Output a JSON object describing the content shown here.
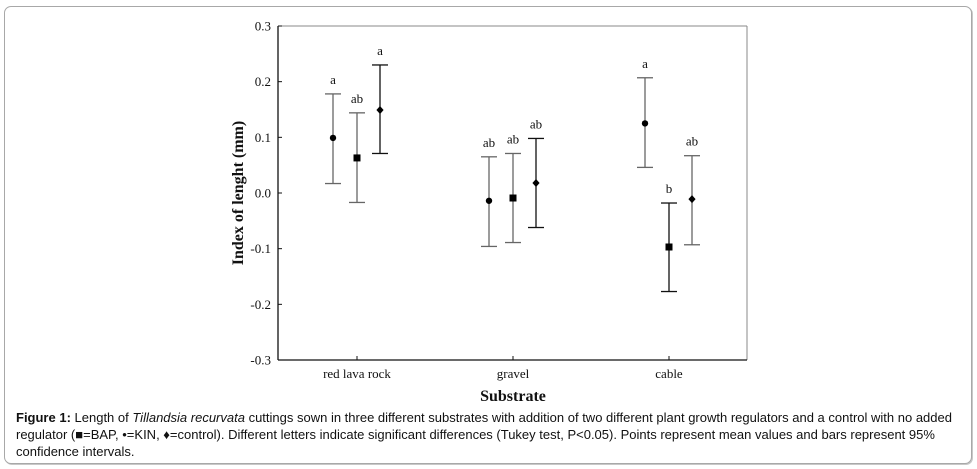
{
  "chart_data": {
    "type": "scatter",
    "subtype": "point-with-error-bars",
    "title": "",
    "xlabel": "Substrate",
    "ylabel": "Index of lenght (mm)",
    "ylim": [
      -0.3,
      0.3
    ],
    "yticks": [
      0.3,
      0.2,
      0.1,
      0.0,
      -0.1,
      -0.2,
      -0.3
    ],
    "ytick_labels": [
      "0.3",
      "0.2",
      "0.1",
      "0.0",
      "-0.1",
      "-0.2",
      "-0.3"
    ],
    "categories": [
      "red lava rock",
      "gravel",
      "cable"
    ],
    "grid": false,
    "legend": "none (described in caption)",
    "series": [
      {
        "name": "BAP",
        "marker": "square",
        "values": [
          0.063,
          -0.009,
          -0.097
        ],
        "ci_low": [
          -0.017,
          -0.089,
          -0.177
        ],
        "ci_high": [
          0.144,
          0.071,
          -0.018
        ],
        "letters": [
          "ab",
          "ab",
          "b"
        ],
        "bar_colors": [
          "#666666",
          "#666666",
          "#111111"
        ]
      },
      {
        "name": "KIN",
        "marker": "circle",
        "values": [
          0.099,
          -0.014,
          0.125
        ],
        "ci_low": [
          0.017,
          -0.096,
          0.046
        ],
        "ci_high": [
          0.178,
          0.065,
          0.207
        ],
        "letters": [
          "a",
          "ab",
          "a"
        ],
        "bar_colors": [
          "#666666",
          "#666666",
          "#666666"
        ]
      },
      {
        "name": "control",
        "marker": "diamond",
        "values": [
          0.149,
          0.018,
          -0.011
        ],
        "ci_low": [
          0.071,
          -0.062,
          -0.093
        ],
        "ci_high": [
          0.23,
          0.098,
          0.067
        ],
        "letters": [
          "a",
          "ab",
          "ab"
        ],
        "bar_colors": [
          "#111111",
          "#111111",
          "#666666"
        ]
      }
    ],
    "group_order": [
      [
        "KIN",
        "BAP",
        "control"
      ],
      [
        "KIN",
        "BAP",
        "control"
      ],
      [
        "KIN",
        "BAP",
        "control"
      ]
    ]
  },
  "caption": {
    "label": "Figure 1:",
    "text_before_italic": " Length of ",
    "italic": "Tillandsia recurvata",
    "text_after_italic": " cuttings sown in three different substrates with addition of two different plant growth regulators and a control with no added regulator (■=BAP, •=KIN, ♦=control). Different letters indicate significant differences (Tukey test, P<0.05). Points represent mean values and bars represent 95% confidence intervals."
  }
}
